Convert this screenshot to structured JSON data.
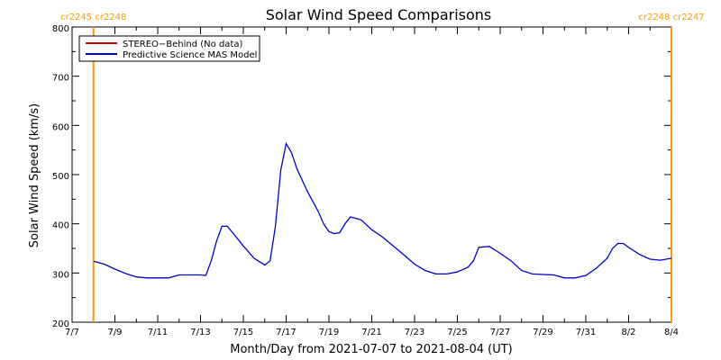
{
  "chart_data": {
    "type": "line",
    "title": "Solar Wind Speed Comparisons",
    "xlabel": "Month/Day from 2021-07-07 to 2021-08-04 (UT)",
    "ylabel": "Solar Wind Speed (km/s)",
    "xlim": [
      "2021-07-07",
      "2021-08-04"
    ],
    "ylim": [
      200,
      800
    ],
    "x_ticks": [
      "7/7",
      "7/9",
      "7/11",
      "7/13",
      "7/15",
      "7/17",
      "7/19",
      "7/21",
      "7/23",
      "7/25",
      "7/27",
      "7/29",
      "7/31",
      "8/2",
      "8/4"
    ],
    "y_ticks": [
      200,
      300,
      400,
      500,
      600,
      700,
      800
    ],
    "legend_position": "top-left",
    "series": [
      {
        "name": "STEREO−Behind (No data)",
        "color": "#cc0000",
        "x": [],
        "y": []
      },
      {
        "name": "Predictive Science MAS Model",
        "color": "#0000cc",
        "x": [
          "2021-07-08 00:00",
          "2021-07-08 12:00",
          "2021-07-09 00:00",
          "2021-07-09 12:00",
          "2021-07-10 00:00",
          "2021-07-10 12:00",
          "2021-07-11 00:00",
          "2021-07-11 12:00",
          "2021-07-12 00:00",
          "2021-07-12 12:00",
          "2021-07-13 00:00",
          "2021-07-13 06:00",
          "2021-07-13 12:00",
          "2021-07-13 18:00",
          "2021-07-14 00:00",
          "2021-07-14 06:00",
          "2021-07-14 12:00",
          "2021-07-15 00:00",
          "2021-07-15 12:00",
          "2021-07-16 00:00",
          "2021-07-16 06:00",
          "2021-07-16 12:00",
          "2021-07-16 18:00",
          "2021-07-17 00:00",
          "2021-07-17 06:00",
          "2021-07-17 12:00",
          "2021-07-18 00:00",
          "2021-07-18 12:00",
          "2021-07-18 18:00",
          "2021-07-19 00:00",
          "2021-07-19 06:00",
          "2021-07-19 12:00",
          "2021-07-19 18:00",
          "2021-07-20 00:00",
          "2021-07-20 12:00",
          "2021-07-21 00:00",
          "2021-07-21 12:00",
          "2021-07-22 00:00",
          "2021-07-22 12:00",
          "2021-07-23 00:00",
          "2021-07-23 12:00",
          "2021-07-24 00:00",
          "2021-07-24 12:00",
          "2021-07-25 00:00",
          "2021-07-25 12:00",
          "2021-07-25 18:00",
          "2021-07-26 00:00",
          "2021-07-26 12:00",
          "2021-07-27 00:00",
          "2021-07-27 12:00",
          "2021-07-28 00:00",
          "2021-07-28 12:00",
          "2021-07-29 00:00",
          "2021-07-29 12:00",
          "2021-07-30 00:00",
          "2021-07-30 12:00",
          "2021-07-31 00:00",
          "2021-07-31 12:00",
          "2021-08-01 00:00",
          "2021-08-01 06:00",
          "2021-08-01 12:00",
          "2021-08-01 18:00",
          "2021-08-02 00:00",
          "2021-08-02 12:00",
          "2021-08-03 00:00",
          "2021-08-03 12:00",
          "2021-08-04 00:00"
        ],
        "y": [
          324,
          318,
          308,
          299,
          292,
          290,
          290,
          290,
          296,
          296,
          296,
          295,
          325,
          365,
          395,
          395,
          382,
          355,
          330,
          316,
          325,
          395,
          510,
          563,
          545,
          512,
          465,
          425,
          400,
          384,
          380,
          382,
          400,
          414,
          408,
          388,
          373,
          355,
          337,
          318,
          305,
          298,
          298,
          302,
          312,
          325,
          352,
          354,
          340,
          325,
          305,
          298,
          297,
          296,
          290,
          290,
          295,
          310,
          330,
          350,
          360,
          360,
          352,
          338,
          328,
          326,
          330
        ]
      }
    ],
    "carrington_markers": [
      {
        "date": "2021-07-08 00:00",
        "label": "cr2245 cr2248"
      },
      {
        "date": "2021-08-04 00:00",
        "label": "cr2248 cr2247"
      }
    ],
    "marker_color": "#ff9a00"
  }
}
